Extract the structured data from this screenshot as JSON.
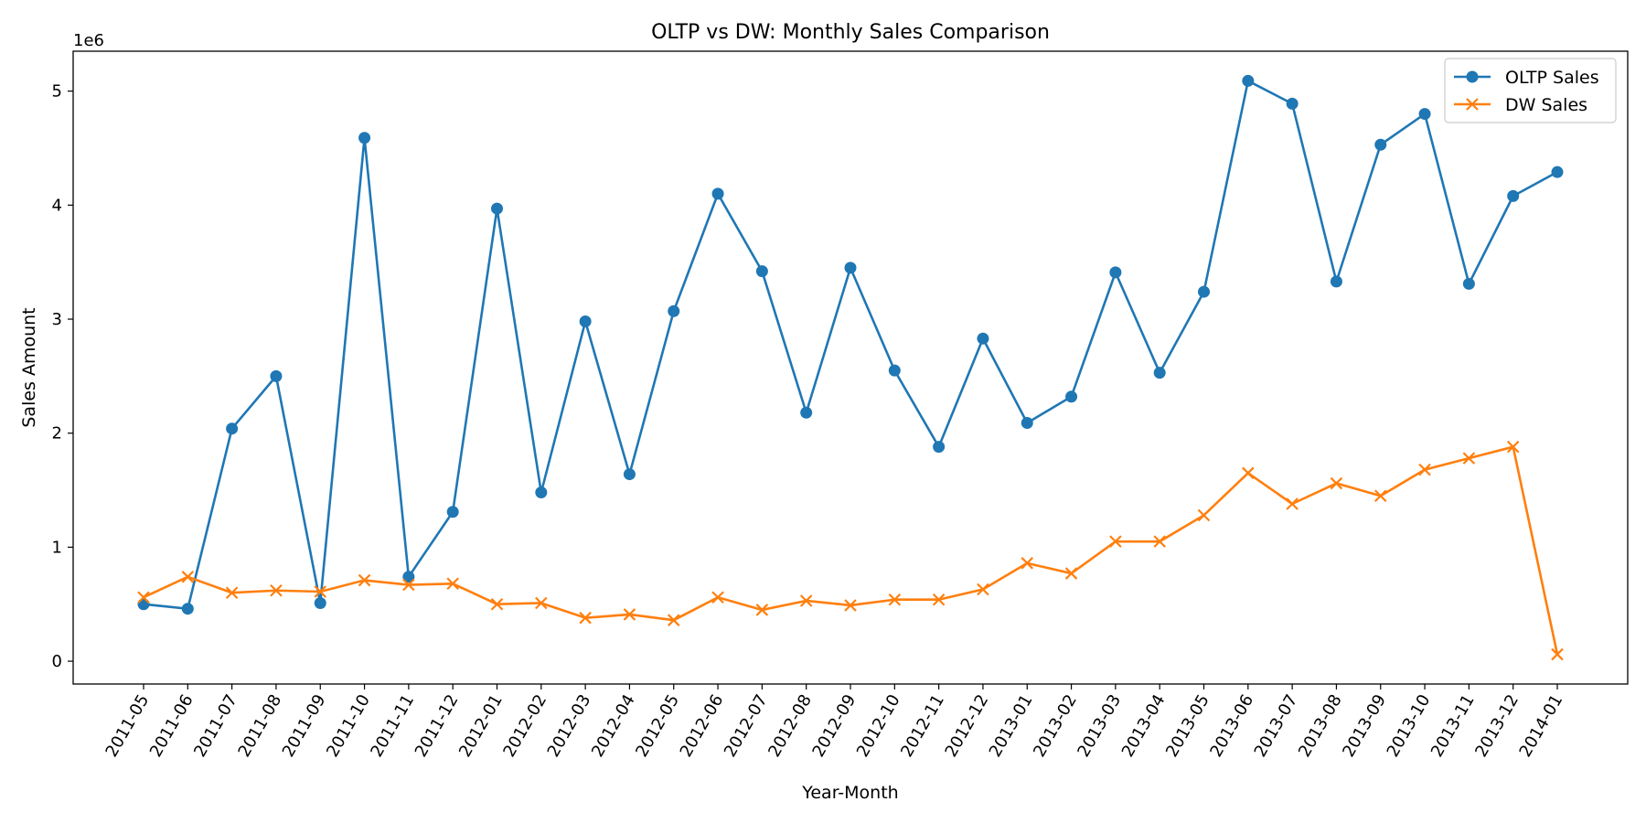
{
  "chart_data": {
    "type": "line",
    "title": "OLTP vs DW: Monthly Sales Comparison",
    "xlabel": "Year-Month",
    "ylabel": "Sales Amount",
    "y_offset_label": "1e6",
    "ylim": [
      -200000,
      5350000
    ],
    "yticks": [
      0,
      1000000,
      2000000,
      3000000,
      4000000,
      5000000
    ],
    "ytick_labels": [
      "0",
      "1",
      "2",
      "3",
      "4",
      "5"
    ],
    "grid": false,
    "legend_position": "top-right",
    "categories": [
      "2011-05",
      "2011-06",
      "2011-07",
      "2011-08",
      "2011-09",
      "2011-10",
      "2011-11",
      "2011-12",
      "2012-01",
      "2012-02",
      "2012-03",
      "2012-04",
      "2012-05",
      "2012-06",
      "2012-07",
      "2012-08",
      "2012-09",
      "2012-10",
      "2012-11",
      "2012-12",
      "2013-01",
      "2013-02",
      "2013-03",
      "2013-04",
      "2013-05",
      "2013-06",
      "2013-07",
      "2013-08",
      "2013-09",
      "2013-10",
      "2013-11",
      "2013-12",
      "2014-01"
    ],
    "series": [
      {
        "name": "OLTP Sales",
        "color": "#1f77b4",
        "marker": "circle",
        "values": [
          500000,
          460000,
          2040000,
          2500000,
          510000,
          4590000,
          740000,
          1310000,
          3970000,
          1480000,
          2980000,
          1640000,
          3070000,
          4100000,
          3420000,
          2180000,
          3450000,
          2550000,
          1880000,
          2830000,
          2090000,
          2320000,
          3410000,
          2530000,
          3240000,
          5090000,
          4890000,
          3330000,
          4530000,
          4800000,
          3310000,
          4080000,
          4290000
        ]
      },
      {
        "name": "DW Sales",
        "color": "#ff7f0e",
        "marker": "x",
        "values": [
          560000,
          740000,
          600000,
          620000,
          610000,
          710000,
          670000,
          680000,
          500000,
          510000,
          380000,
          410000,
          360000,
          560000,
          450000,
          530000,
          490000,
          540000,
          540000,
          630000,
          860000,
          770000,
          1050000,
          1050000,
          1280000,
          1650000,
          1380000,
          1560000,
          1450000,
          1680000,
          1780000,
          1880000,
          60000
        ]
      }
    ]
  }
}
